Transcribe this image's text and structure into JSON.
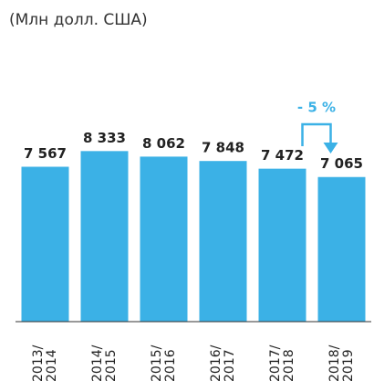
{
  "chart_data": {
    "type": "bar",
    "title": "(Млн долл. США)",
    "categories": [
      "2013/ 2014",
      "2014/ 2015",
      "2015/ 2016",
      "2016/ 2017",
      "2017/ 2018",
      "2018/ 2019"
    ],
    "values": [
      7567,
      8333,
      8062,
      7848,
      7472,
      7065
    ],
    "value_labels": [
      "7 567",
      "8 333",
      "8 062",
      "7 848",
      "7 472",
      "7 065"
    ],
    "color": "#3bb1e6",
    "ylim": [
      0,
      10000
    ],
    "annotation": "- 5 %",
    "annotation_color": "#3bb1e6"
  }
}
